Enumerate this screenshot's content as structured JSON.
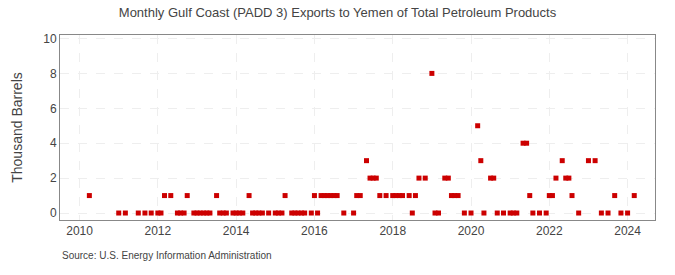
{
  "chart_data": {
    "type": "scatter",
    "title": "Monthly Gulf Coast (PADD 3) Exports to Yemen of Total Petroleum Products",
    "ylabel": "Thousand Barrels",
    "annotations": [
      "Source: U.S. Energy Information Administration"
    ],
    "color": "#cc0000",
    "marker": "square",
    "grid": true,
    "xlim": [
      2009.5,
      2024.7
    ],
    "ylim": [
      -0.4,
      10.2
    ],
    "xticks": [
      2010,
      2012,
      2014,
      2016,
      2018,
      2020,
      2022,
      2024
    ],
    "yticks": [
      0,
      2,
      4,
      6,
      8,
      10
    ],
    "x": [
      2010.25,
      2011.0,
      2011.17,
      2011.5,
      2011.67,
      2011.83,
      2012.0,
      2012.08,
      2012.17,
      2012.33,
      2012.5,
      2012.58,
      2012.67,
      2012.75,
      2012.92,
      2013.0,
      2013.08,
      2013.17,
      2013.25,
      2013.33,
      2013.5,
      2013.58,
      2013.67,
      2013.75,
      2013.92,
      2014.0,
      2014.08,
      2014.17,
      2014.33,
      2014.42,
      2014.5,
      2014.58,
      2014.67,
      2014.83,
      2015.0,
      2015.08,
      2015.17,
      2015.25,
      2015.42,
      2015.5,
      2015.58,
      2015.67,
      2015.75,
      2015.92,
      2016.0,
      2016.08,
      2016.17,
      2016.25,
      2016.33,
      2016.42,
      2016.5,
      2016.58,
      2016.75,
      2017.0,
      2017.08,
      2017.17,
      2017.33,
      2017.42,
      2017.5,
      2017.58,
      2017.67,
      2017.83,
      2018.0,
      2018.08,
      2018.17,
      2018.25,
      2018.42,
      2018.5,
      2018.58,
      2018.67,
      2018.83,
      2019.0,
      2019.08,
      2019.17,
      2019.33,
      2019.42,
      2019.5,
      2019.58,
      2019.67,
      2019.83,
      2020.0,
      2020.17,
      2020.25,
      2020.33,
      2020.5,
      2020.58,
      2020.67,
      2020.83,
      2021.0,
      2021.08,
      2021.17,
      2021.33,
      2021.42,
      2021.5,
      2021.58,
      2021.75,
      2021.92,
      2022.0,
      2022.08,
      2022.17,
      2022.33,
      2022.42,
      2022.5,
      2022.58,
      2022.75,
      2023.0,
      2023.17,
      2023.33,
      2023.5,
      2023.67,
      2023.83,
      2024.0,
      2024.17
    ],
    "values": [
      1,
      0,
      0,
      0,
      0,
      0,
      0,
      0,
      1,
      1,
      0,
      0,
      0,
      1,
      0,
      0,
      0,
      0,
      0,
      0,
      1,
      0,
      0,
      0,
      0,
      0,
      0,
      0,
      1,
      0,
      0,
      0,
      0,
      0,
      0,
      0,
      0,
      1,
      0,
      0,
      0,
      0,
      0,
      0,
      1,
      0,
      1,
      1,
      1,
      1,
      1,
      1,
      0,
      0,
      1,
      1,
      3,
      2,
      2,
      2,
      1,
      1,
      1,
      1,
      1,
      1,
      1,
      0,
      1,
      2,
      2,
      8,
      0,
      0,
      2,
      2,
      1,
      1,
      1,
      0,
      0,
      5,
      3,
      0,
      2,
      2,
      0,
      0,
      0,
      0,
      0,
      4,
      4,
      1,
      0,
      0,
      0,
      1,
      1,
      2,
      3,
      2,
      2,
      1,
      0,
      3,
      3,
      0,
      0,
      1,
      0,
      0,
      1
    ]
  }
}
